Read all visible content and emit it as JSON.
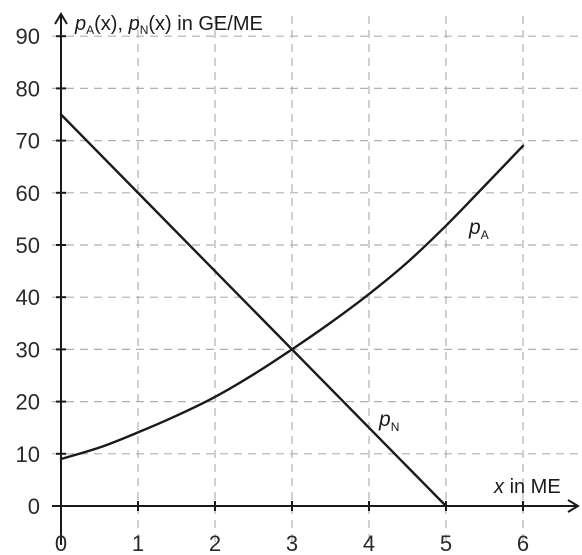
{
  "chart_data": {
    "type": "line",
    "xlabel_var": "x",
    "xlabel_unit": "in ME",
    "ylabel_parts": {
      "p1": "p",
      "sub1": "A",
      "arg1": "(x), ",
      "p2": "p",
      "sub2": "N",
      "arg2": "(x) in GE/ME"
    },
    "x_ticks": [
      "0",
      "1",
      "2",
      "3",
      "4",
      "5",
      "6"
    ],
    "y_ticks": [
      "0",
      "10",
      "20",
      "30",
      "40",
      "50",
      "60",
      "70",
      "80",
      "90"
    ],
    "xlim": [
      0,
      6.6
    ],
    "ylim": [
      0,
      93
    ],
    "grid": true,
    "grid_style": "dashed",
    "series": [
      {
        "name": "p_A",
        "label_main": "p",
        "label_sub": "A",
        "x": [
          0,
          0.5,
          1,
          1.5,
          2,
          2.5,
          3,
          3.5,
          4,
          4.5,
          5,
          5.5,
          6
        ],
        "y": [
          9,
          11.2,
          14.1,
          17.3,
          20.9,
          25.2,
          30,
          35.1,
          40.6,
          46.7,
          53.7,
          61.3,
          69
        ]
      },
      {
        "name": "p_N",
        "label_main": "p",
        "label_sub": "N",
        "x": [
          0,
          5
        ],
        "y": [
          75,
          0
        ]
      }
    ],
    "colors": {
      "curve": "#1a1a1a",
      "axis": "#1a1a1a",
      "grid": "#b0b0b0",
      "text": "#2a2a2a"
    }
  }
}
